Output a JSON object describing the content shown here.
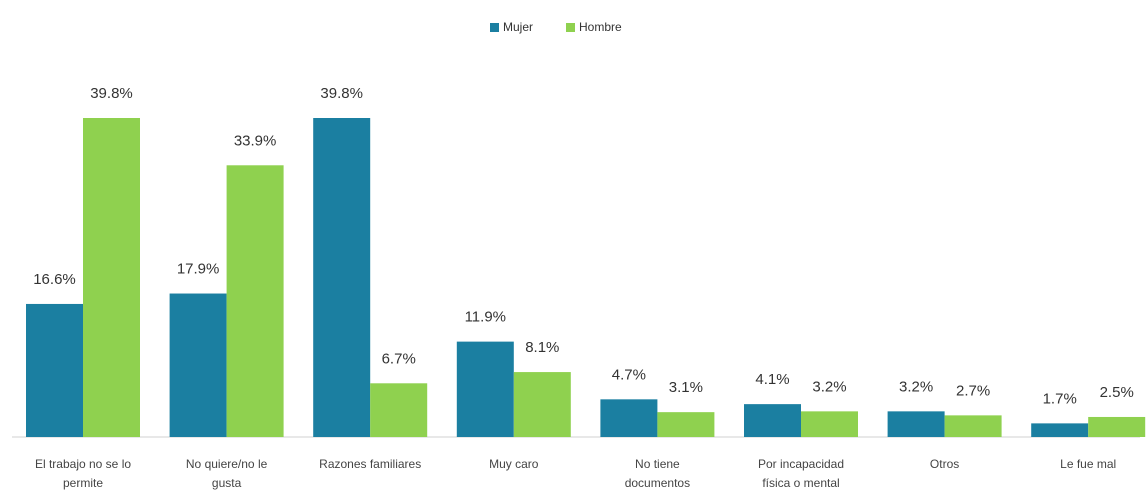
{
  "chart_data": {
    "type": "bar",
    "categories": [
      "El trabajo no se lo permite",
      "No quiere/no le gusta",
      "Razones familiares",
      "Muy caro",
      "No tiene documentos",
      "Por incapacidad física o mental",
      "Otros",
      "Le fue mal"
    ],
    "series": [
      {
        "name": "Mujer",
        "color": "#1b7fa1",
        "values": [
          16.6,
          17.9,
          39.8,
          11.9,
          4.7,
          4.1,
          3.2,
          1.7
        ],
        "value_labels": [
          "16.6%",
          "17.9%",
          "39.8%",
          "11.9%",
          "4.7%",
          "4.1%",
          "3.2%",
          "1.7%"
        ]
      },
      {
        "name": "Hombre",
        "color": "#8fd14f",
        "values": [
          39.8,
          33.9,
          6.7,
          8.1,
          3.1,
          3.2,
          2.7,
          2.5
        ],
        "value_labels": [
          "39.8%",
          "33.9%",
          "6.7%",
          "8.1%",
          "3.1%",
          "3.2%",
          "2.7%",
          "2.5%"
        ]
      }
    ],
    "legend": "top"
  }
}
